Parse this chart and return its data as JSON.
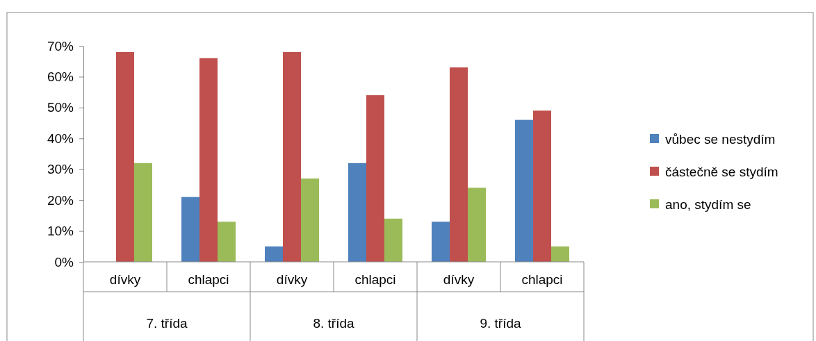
{
  "chart_data": {
    "type": "bar",
    "categories": [
      "dívky",
      "chlapci",
      "dívky",
      "chlapci",
      "dívky",
      "chlapci"
    ],
    "series": [
      {
        "name": "vůbec se nestydím",
        "color": "#4f81bd",
        "values": [
          0,
          0.21,
          0.05,
          0.32,
          0.13,
          0.46
        ]
      },
      {
        "name": "částečně se stydím",
        "color": "#c0504d",
        "values": [
          0.68,
          0.66,
          0.68,
          0.54,
          0.63,
          0.49
        ]
      },
      {
        "name": "ano, stydím se",
        "color": "#9bbb59",
        "values": [
          0.32,
          0.13,
          0.27,
          0.14,
          0.24,
          0.05
        ]
      }
    ],
    "ylim": [
      0,
      0.7
    ],
    "yticks": [
      {
        "value": 0,
        "label": "0%"
      },
      {
        "value": 0.1,
        "label": "10%"
      },
      {
        "value": 0.2,
        "label": "20%"
      },
      {
        "value": 0.3,
        "label": "30%"
      },
      {
        "value": 0.4,
        "label": "40%"
      },
      {
        "value": 0.5,
        "label": "50%"
      },
      {
        "value": 0.6,
        "label": "60%"
      },
      {
        "value": 0.7,
        "label": "70%"
      }
    ],
    "grid": false,
    "legend": "right",
    "annotations": [
      "7. třída",
      "8. třída",
      "9. třída"
    ]
  }
}
